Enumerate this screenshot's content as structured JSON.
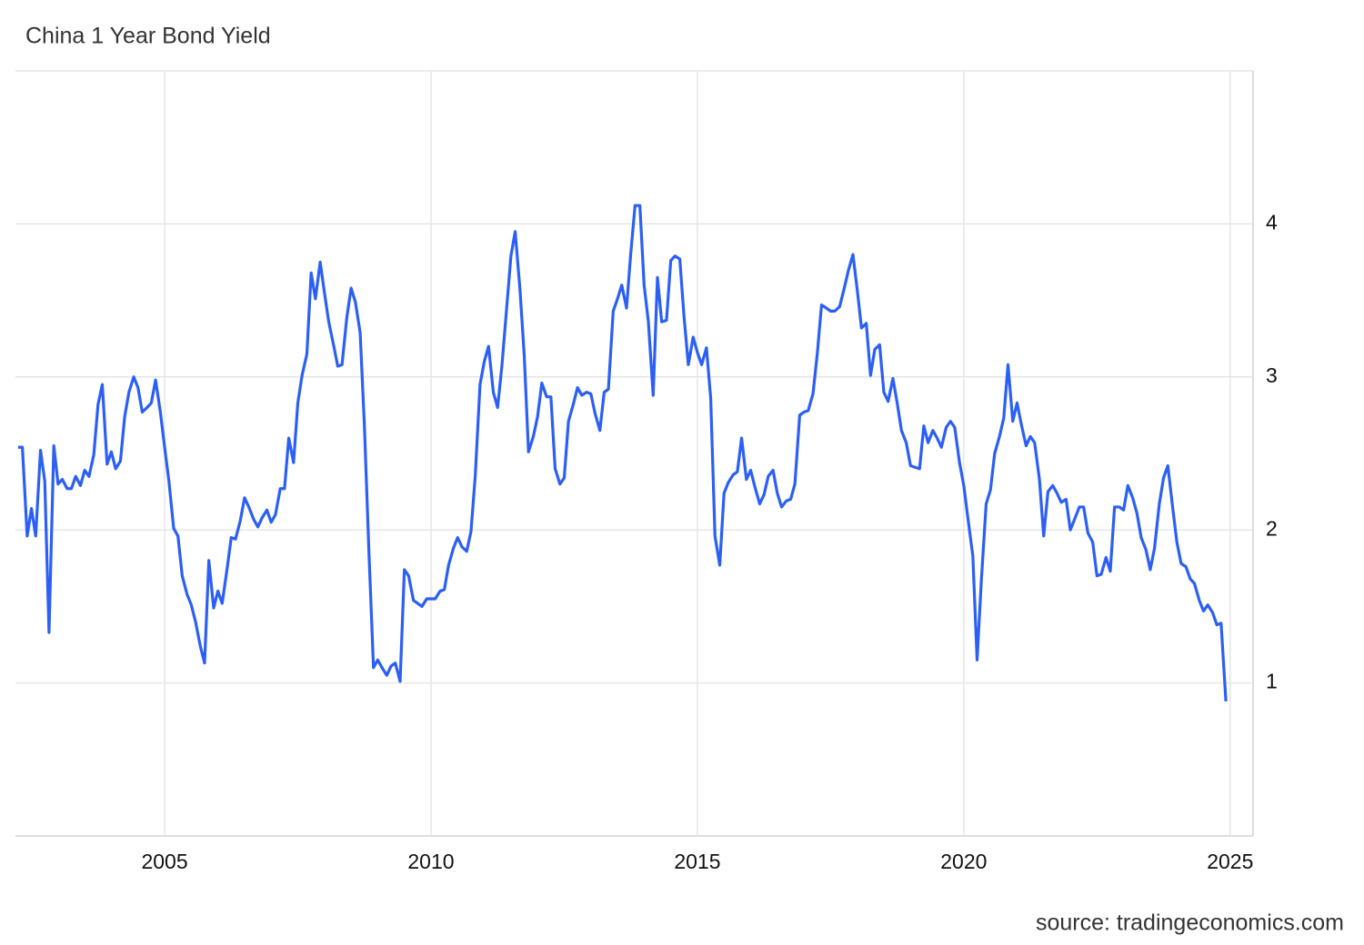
{
  "chart_data": {
    "type": "line",
    "title": "China 1 Year Bond Yield",
    "source": "source: tradingeconomics.com",
    "color": "#2c5ff6",
    "grid": true,
    "xlim": [
      2002.2,
      2025.43
    ],
    "xticks": [
      2005,
      2010,
      2015,
      2020,
      2025
    ],
    "ylim": [
      0,
      5
    ],
    "yticks": [
      1,
      2,
      3,
      4
    ],
    "x": [
      2002.25,
      2002.33,
      2002.42,
      2002.5,
      2002.58,
      2002.67,
      2002.75,
      2002.83,
      2002.92,
      2003,
      2003.08,
      2003.17,
      2003.25,
      2003.33,
      2003.42,
      2003.5,
      2003.58,
      2003.67,
      2003.75,
      2003.83,
      2003.92,
      2004,
      2004.08,
      2004.17,
      2004.25,
      2004.33,
      2004.42,
      2004.5,
      2004.58,
      2004.67,
      2004.75,
      2004.83,
      2004.92,
      2005,
      2005.08,
      2005.17,
      2005.25,
      2005.33,
      2005.42,
      2005.5,
      2005.58,
      2005.67,
      2005.75,
      2005.83,
      2005.92,
      2006,
      2006.08,
      2006.17,
      2006.25,
      2006.33,
      2006.42,
      2006.5,
      2006.58,
      2006.67,
      2006.75,
      2006.83,
      2006.92,
      2007,
      2007.08,
      2007.17,
      2007.25,
      2007.33,
      2007.42,
      2007.5,
      2007.58,
      2007.67,
      2007.75,
      2007.83,
      2007.92,
      2008,
      2008.08,
      2008.17,
      2008.25,
      2008.33,
      2008.42,
      2008.5,
      2008.58,
      2008.67,
      2008.75,
      2008.83,
      2008.92,
      2009,
      2009.08,
      2009.17,
      2009.25,
      2009.33,
      2009.42,
      2009.5,
      2009.58,
      2009.67,
      2009.75,
      2009.83,
      2009.92,
      2010,
      2010.08,
      2010.17,
      2010.25,
      2010.33,
      2010.42,
      2010.5,
      2010.58,
      2010.67,
      2010.75,
      2010.83,
      2010.92,
      2011,
      2011.08,
      2011.17,
      2011.25,
      2011.33,
      2011.42,
      2011.5,
      2011.58,
      2011.67,
      2011.75,
      2011.83,
      2011.92,
      2012,
      2012.08,
      2012.17,
      2012.25,
      2012.33,
      2012.42,
      2012.5,
      2012.58,
      2012.67,
      2012.75,
      2012.83,
      2012.92,
      2013,
      2013.08,
      2013.17,
      2013.25,
      2013.33,
      2013.42,
      2013.5,
      2013.58,
      2013.67,
      2013.75,
      2013.83,
      2013.92,
      2014,
      2014.08,
      2014.17,
      2014.25,
      2014.33,
      2014.42,
      2014.5,
      2014.58,
      2014.67,
      2014.75,
      2014.83,
      2014.92,
      2015,
      2015.08,
      2015.17,
      2015.25,
      2015.33,
      2015.42,
      2015.5,
      2015.58,
      2015.67,
      2015.75,
      2015.83,
      2015.92,
      2016,
      2016.08,
      2016.17,
      2016.25,
      2016.33,
      2016.42,
      2016.5,
      2016.58,
      2016.67,
      2016.75,
      2016.83,
      2016.92,
      2017,
      2017.08,
      2017.17,
      2017.25,
      2017.33,
      2017.42,
      2017.5,
      2017.58,
      2017.67,
      2017.75,
      2017.83,
      2017.92,
      2018,
      2018.08,
      2018.17,
      2018.25,
      2018.33,
      2018.42,
      2018.5,
      2018.58,
      2018.67,
      2018.75,
      2018.83,
      2018.92,
      2019,
      2019.08,
      2019.17,
      2019.25,
      2019.33,
      2019.42,
      2019.5,
      2019.58,
      2019.67,
      2019.75,
      2019.83,
      2019.92,
      2020,
      2020.08,
      2020.17,
      2020.25,
      2020.33,
      2020.42,
      2020.5,
      2020.58,
      2020.67,
      2020.75,
      2020.83,
      2020.92,
      2021,
      2021.08,
      2021.17,
      2021.25,
      2021.33,
      2021.42,
      2021.5,
      2021.58,
      2021.67,
      2021.75,
      2021.83,
      2021.92,
      2022,
      2022.08,
      2022.17,
      2022.25,
      2022.33,
      2022.42,
      2022.5,
      2022.58,
      2022.67,
      2022.75,
      2022.83,
      2022.92,
      2023,
      2023.08,
      2023.17,
      2023.25,
      2023.33,
      2023.42,
      2023.5,
      2023.58,
      2023.67,
      2023.75,
      2023.83,
      2023.92,
      2024,
      2024.08,
      2024.17,
      2024.25,
      2024.33,
      2024.42,
      2024.5,
      2024.58,
      2024.67,
      2024.75,
      2024.83,
      2024.92
    ],
    "values": [
      2.54,
      2.54,
      1.96,
      2.14,
      1.96,
      2.52,
      2.32,
      1.33,
      2.55,
      2.3,
      2.33,
      2.27,
      2.27,
      2.35,
      2.29,
      2.39,
      2.35,
      2.49,
      2.82,
      2.95,
      2.43,
      2.51,
      2.4,
      2.45,
      2.74,
      2.9,
      3.0,
      2.93,
      2.77,
      2.8,
      2.83,
      2.98,
      2.77,
      2.54,
      2.32,
      2.01,
      1.96,
      1.7,
      1.58,
      1.51,
      1.4,
      1.24,
      1.13,
      1.8,
      1.49,
      1.6,
      1.52,
      1.74,
      1.95,
      1.94,
      2.06,
      2.21,
      2.15,
      2.07,
      2.02,
      2.08,
      2.13,
      2.05,
      2.1,
      2.27,
      2.27,
      2.6,
      2.44,
      2.83,
      3.01,
      3.15,
      3.68,
      3.51,
      3.75,
      3.55,
      3.36,
      3.21,
      3.07,
      3.08,
      3.39,
      3.58,
      3.49,
      3.29,
      2.68,
      1.9,
      1.1,
      1.15,
      1.1,
      1.05,
      1.11,
      1.13,
      1.01,
      1.74,
      1.7,
      1.54,
      1.52,
      1.5,
      1.55,
      1.55,
      1.55,
      1.6,
      1.61,
      1.77,
      1.88,
      1.95,
      1.89,
      1.86,
      1.99,
      2.35,
      2.95,
      3.1,
      3.2,
      2.9,
      2.8,
      3.07,
      3.45,
      3.79,
      3.95,
      3.57,
      3.14,
      2.51,
      2.61,
      2.74,
      2.96,
      2.87,
      2.87,
      2.4,
      2.3,
      2.34,
      2.71,
      2.82,
      2.93,
      2.88,
      2.9,
      2.89,
      2.76,
      2.65,
      2.9,
      2.92,
      3.43,
      3.51,
      3.6,
      3.45,
      3.81,
      4.12,
      4.12,
      3.6,
      3.36,
      2.88,
      3.65,
      3.36,
      3.37,
      3.76,
      3.79,
      3.77,
      3.39,
      3.08,
      3.26,
      3.16,
      3.08,
      3.19,
      2.86,
      1.96,
      1.77,
      2.24,
      2.31,
      2.36,
      2.38,
      2.6,
      2.33,
      2.39,
      2.28,
      2.17,
      2.23,
      2.35,
      2.39,
      2.24,
      2.15,
      2.19,
      2.2,
      2.3,
      2.75,
      2.77,
      2.78,
      2.89,
      3.15,
      3.47,
      3.45,
      3.43,
      3.43,
      3.46,
      3.57,
      3.69,
      3.8,
      3.57,
      3.32,
      3.35,
      3.01,
      3.18,
      3.21,
      2.9,
      2.84,
      2.99,
      2.83,
      2.65,
      2.57,
      2.42,
      2.41,
      2.4,
      2.68,
      2.57,
      2.65,
      2.6,
      2.54,
      2.67,
      2.71,
      2.67,
      2.44,
      2.29,
      2.07,
      1.83,
      1.15,
      1.67,
      2.17,
      2.26,
      2.5,
      2.61,
      2.73,
      3.08,
      2.71,
      2.83,
      2.69,
      2.55,
      2.61,
      2.57,
      2.33,
      1.96,
      2.25,
      2.29,
      2.24,
      2.18,
      2.2,
      2.0,
      2.07,
      2.15,
      2.15,
      1.98,
      1.92,
      1.7,
      1.71,
      1.82,
      1.73,
      2.15,
      2.15,
      2.13,
      2.29,
      2.21,
      2.11,
      1.95,
      1.87,
      1.74,
      1.88,
      2.17,
      2.34,
      2.42,
      2.15,
      1.92,
      1.78,
      1.76,
      1.68,
      1.65,
      1.54,
      1.47,
      1.51,
      1.46,
      1.38,
      1.39,
      0.88
    ]
  }
}
